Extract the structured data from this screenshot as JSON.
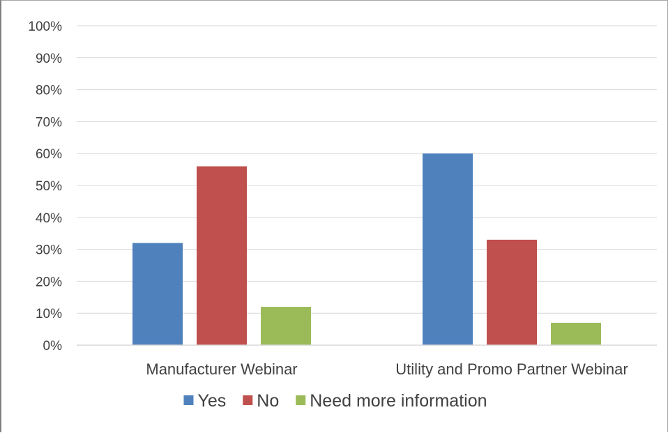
{
  "chart_data": {
    "type": "bar",
    "categories": [
      "Manufacturer Webinar",
      "Utility and Promo Partner Webinar"
    ],
    "series": [
      {
        "name": "Yes",
        "values": [
          32,
          60
        ],
        "color": "#4f81bd"
      },
      {
        "name": "No",
        "values": [
          56,
          33
        ],
        "color": "#c0504d"
      },
      {
        "name": "Need more information",
        "values": [
          12,
          7
        ],
        "color": "#9bbb59"
      }
    ],
    "y_ticks": [
      "0%",
      "10%",
      "20%",
      "30%",
      "40%",
      "50%",
      "60%",
      "70%",
      "80%",
      "90%",
      "100%"
    ],
    "ylim": [
      0,
      100
    ],
    "grid": true,
    "legend_position": "bottom",
    "title": "",
    "xlabel": "",
    "ylabel": ""
  }
}
